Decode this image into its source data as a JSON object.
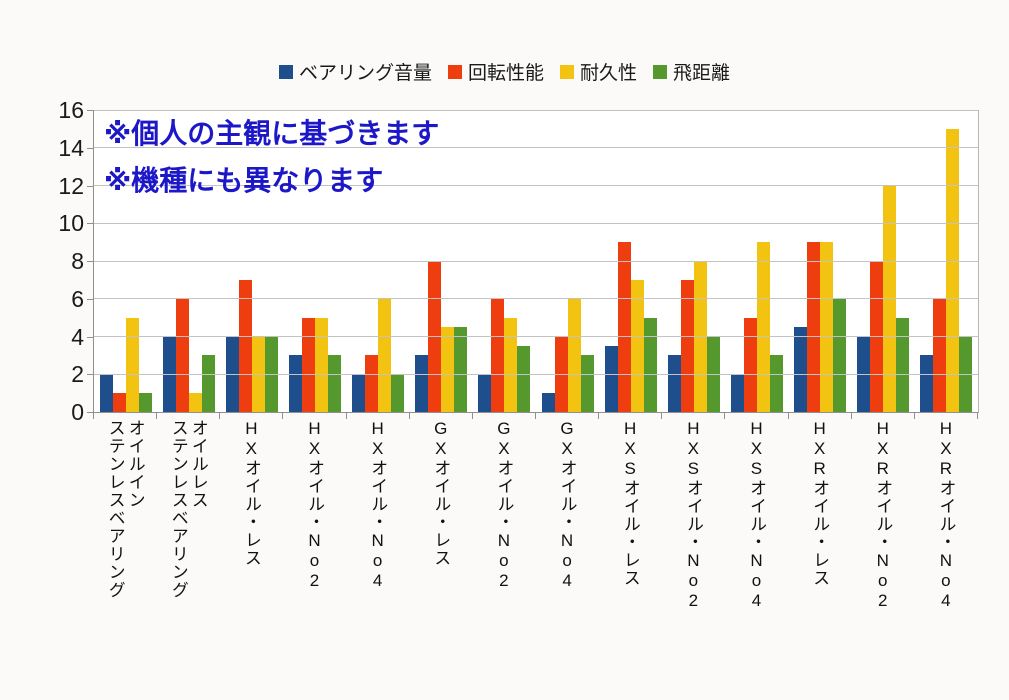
{
  "chart_data": {
    "type": "bar",
    "title": "",
    "legend_position": "top",
    "grid": true,
    "ylim": [
      0,
      16
    ],
    "yticks": [
      0,
      2,
      4,
      6,
      8,
      10,
      12,
      14,
      16
    ],
    "xlabel": "",
    "ylabel": "",
    "categories": [
      "オイルイン\nステンレスベアリング",
      "オイルレス\nステンレスベアリング",
      "HXオイル・レス",
      "HXオイル・No2",
      "HXオイル・No4",
      "GXオイル・レス",
      "GXオイル・No2",
      "GXオイル・No4",
      "HXSオイル・レス",
      "HXSオイル・No2",
      "HXSオイル・No4",
      "HXRオイル・レス",
      "HXRオイル・No2",
      "HXRオイル・No4"
    ],
    "series": [
      {
        "name": "ベアリング音量",
        "color": "#1f4e8c",
        "values": [
          2,
          4,
          4,
          3,
          2,
          3,
          2,
          1,
          3.5,
          3,
          2,
          4.5,
          4,
          3
        ]
      },
      {
        "name": "回転性能",
        "color": "#ee3d0e",
        "values": [
          1,
          6,
          7,
          5,
          3,
          8,
          6,
          4,
          9,
          7,
          5,
          9,
          8,
          6
        ]
      },
      {
        "name": "耐久性",
        "color": "#f3c311",
        "values": [
          5,
          1,
          4,
          5,
          6,
          4.5,
          5,
          6,
          7,
          8,
          9,
          9,
          12,
          15
        ]
      },
      {
        "name": "飛距離",
        "color": "#55982d",
        "values": [
          1,
          3,
          4,
          3,
          2,
          4.5,
          3.5,
          3,
          5,
          4,
          3,
          6,
          5,
          4
        ]
      }
    ],
    "annotations": {
      "line1": "※個人の主観に基づきます",
      "line2": "※機種にも異なります"
    },
    "annotation_color": "#1c18c8",
    "colors": {
      "gridline": "#c3c3c3",
      "axis": "#8f8f8f",
      "plot_background": "#ffffff",
      "page_background": "#fbfaf8"
    }
  }
}
